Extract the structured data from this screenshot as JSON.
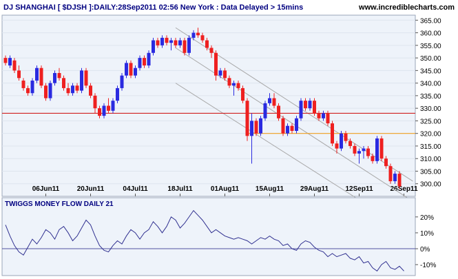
{
  "header": {
    "title": "DJ SHANGHAI [ $DJSH ]:DAILY:28Sep2011 02:56 New York  : Data Delayed > 15mins",
    "watermark": "www.incrediblecharts.com"
  },
  "colors": {
    "up": "#2a2ae0",
    "down": "#ee2020",
    "support_line": "#d02020",
    "resistance_line": "#f0a020",
    "channel": "#a8a8a8",
    "zero_line": "#5050a0",
    "indicator_line": "#303090",
    "panel_bg": "#eef3fa"
  },
  "chart_data": [
    {
      "type": "candlestick",
      "title": "DJ SHANGHAI [ $DJSH ]:DAILY:28Sep2011 02:56 New York  : Data Delayed > 15mins",
      "x_tick_labels": [
        "06Jun11",
        "20Jun11",
        "04Jul11",
        "18Jul11",
        "01Aug11",
        "15Aug11",
        "29Aug11",
        "12Sep11",
        "26Sep11"
      ],
      "y_tick_labels": [
        "300.00",
        "305.00",
        "310.00",
        "315.00",
        "320.00",
        "325.00",
        "330.00",
        "335.00",
        "340.00",
        "345.00",
        "350.00",
        "355.00",
        "360.00",
        "365.00"
      ],
      "ylim": [
        295,
        367
      ],
      "horizontal_lines": [
        {
          "value": 328,
          "color": "#d02020"
        },
        {
          "value": 320,
          "color": "#f0a020",
          "from_x": 54
        }
      ],
      "trend_channel": [
        {
          "x": [
            38,
            91
          ],
          "y": [
            362,
            301
          ]
        },
        {
          "x": [
            38,
            91
          ],
          "y": [
            354,
            293
          ]
        },
        {
          "x": [
            38,
            91
          ],
          "y": [
            340,
            280
          ]
        }
      ],
      "ohlc": [
        {
          "x": 0,
          "open": 350,
          "high": 351,
          "low": 347,
          "close": 348
        },
        {
          "x": 1,
          "open": 347,
          "high": 351,
          "low": 346,
          "close": 350
        },
        {
          "x": 2,
          "open": 349,
          "high": 350,
          "low": 344,
          "close": 345
        },
        {
          "x": 3,
          "open": 345,
          "high": 347,
          "low": 341,
          "close": 342
        },
        {
          "x": 4,
          "open": 341,
          "high": 342,
          "low": 337,
          "close": 338
        },
        {
          "x": 5,
          "open": 338,
          "high": 339,
          "low": 335,
          "close": 336
        },
        {
          "x": 6,
          "open": 336,
          "high": 342,
          "low": 335,
          "close": 341
        },
        {
          "x": 7,
          "open": 341,
          "high": 347,
          "low": 340,
          "close": 346
        },
        {
          "x": 8,
          "open": 346,
          "high": 347,
          "low": 338,
          "close": 339
        },
        {
          "x": 9,
          "open": 339,
          "high": 340,
          "low": 333,
          "close": 334
        },
        {
          "x": 10,
          "open": 334,
          "high": 341,
          "low": 333,
          "close": 340
        },
        {
          "x": 11,
          "open": 340,
          "high": 345,
          "low": 339,
          "close": 344
        },
        {
          "x": 12,
          "open": 344,
          "high": 346,
          "low": 341,
          "close": 342
        },
        {
          "x": 13,
          "open": 342,
          "high": 343,
          "low": 337,
          "close": 338
        },
        {
          "x": 14,
          "open": 338,
          "high": 340,
          "low": 335,
          "close": 336
        },
        {
          "x": 15,
          "open": 336,
          "high": 340,
          "low": 335,
          "close": 339
        },
        {
          "x": 16,
          "open": 339,
          "high": 340,
          "low": 336,
          "close": 337
        },
        {
          "x": 17,
          "open": 337,
          "high": 346,
          "low": 336,
          "close": 345
        },
        {
          "x": 18,
          "open": 345,
          "high": 346,
          "low": 338,
          "close": 339
        },
        {
          "x": 19,
          "open": 339,
          "high": 340,
          "low": 334,
          "close": 335
        },
        {
          "x": 20,
          "open": 335,
          "high": 336,
          "low": 328,
          "close": 330
        },
        {
          "x": 21,
          "open": 330,
          "high": 331,
          "low": 326,
          "close": 327
        },
        {
          "x": 22,
          "open": 327,
          "high": 332,
          "low": 326,
          "close": 331
        },
        {
          "x": 23,
          "open": 331,
          "high": 334,
          "low": 328,
          "close": 329
        },
        {
          "x": 24,
          "open": 329,
          "high": 334,
          "low": 328,
          "close": 333
        },
        {
          "x": 25,
          "open": 333,
          "high": 339,
          "low": 332,
          "close": 338
        },
        {
          "x": 26,
          "open": 338,
          "high": 344,
          "low": 337,
          "close": 343
        },
        {
          "x": 27,
          "open": 343,
          "high": 349,
          "low": 342,
          "close": 348
        },
        {
          "x": 28,
          "open": 348,
          "high": 349,
          "low": 342,
          "close": 343
        },
        {
          "x": 29,
          "open": 343,
          "high": 347,
          "low": 342,
          "close": 346
        },
        {
          "x": 30,
          "open": 346,
          "high": 351,
          "low": 345,
          "close": 350
        },
        {
          "x": 31,
          "open": 350,
          "high": 351,
          "low": 346,
          "close": 347
        },
        {
          "x": 32,
          "open": 347,
          "high": 353,
          "low": 346,
          "close": 352
        },
        {
          "x": 33,
          "open": 352,
          "high": 358,
          "low": 351,
          "close": 357
        },
        {
          "x": 34,
          "open": 357,
          "high": 358,
          "low": 354,
          "close": 355
        },
        {
          "x": 35,
          "open": 355,
          "high": 359,
          "low": 354,
          "close": 358
        },
        {
          "x": 36,
          "open": 358,
          "high": 359,
          "low": 355,
          "close": 356
        },
        {
          "x": 37,
          "open": 356,
          "high": 358,
          "low": 353,
          "close": 357
        },
        {
          "x": 38,
          "open": 357,
          "high": 358,
          "low": 354,
          "close": 355
        },
        {
          "x": 39,
          "open": 355,
          "high": 358,
          "low": 354,
          "close": 357
        },
        {
          "x": 40,
          "open": 357,
          "high": 358,
          "low": 351,
          "close": 352
        },
        {
          "x": 41,
          "open": 352,
          "high": 359,
          "low": 351,
          "close": 358
        },
        {
          "x": 42,
          "open": 358,
          "high": 361,
          "low": 357,
          "close": 360
        },
        {
          "x": 43,
          "open": 360,
          "high": 362,
          "low": 358,
          "close": 359
        },
        {
          "x": 44,
          "open": 359,
          "high": 360,
          "low": 356,
          "close": 357
        },
        {
          "x": 45,
          "open": 357,
          "high": 358,
          "low": 353,
          "close": 354
        },
        {
          "x": 46,
          "open": 354,
          "high": 355,
          "low": 350,
          "close": 352
        },
        {
          "x": 47,
          "open": 352,
          "high": 353,
          "low": 341,
          "close": 343
        },
        {
          "x": 48,
          "open": 343,
          "high": 346,
          "low": 342,
          "close": 345
        },
        {
          "x": 49,
          "open": 345,
          "high": 346,
          "low": 341,
          "close": 342
        },
        {
          "x": 50,
          "open": 342,
          "high": 343,
          "low": 338,
          "close": 339
        },
        {
          "x": 51,
          "open": 339,
          "high": 341,
          "low": 335,
          "close": 340
        },
        {
          "x": 52,
          "open": 340,
          "high": 341,
          "low": 337,
          "close": 338
        },
        {
          "x": 53,
          "open": 338,
          "high": 339,
          "low": 332,
          "close": 333
        },
        {
          "x": 54,
          "open": 333,
          "high": 334,
          "low": 317,
          "close": 319
        },
        {
          "x": 55,
          "open": 319,
          "high": 328,
          "low": 308,
          "close": 325
        },
        {
          "x": 56,
          "open": 325,
          "high": 326,
          "low": 319,
          "close": 320
        },
        {
          "x": 57,
          "open": 320,
          "high": 327,
          "low": 319,
          "close": 326
        },
        {
          "x": 58,
          "open": 326,
          "high": 333,
          "low": 325,
          "close": 332
        },
        {
          "x": 59,
          "open": 332,
          "high": 336,
          "low": 331,
          "close": 334
        },
        {
          "x": 60,
          "open": 334,
          "high": 336,
          "low": 330,
          "close": 331
        },
        {
          "x": 61,
          "open": 331,
          "high": 332,
          "low": 325,
          "close": 326
        },
        {
          "x": 62,
          "open": 326,
          "high": 327,
          "low": 319,
          "close": 320
        },
        {
          "x": 63,
          "open": 320,
          "high": 324,
          "low": 319,
          "close": 323
        },
        {
          "x": 64,
          "open": 323,
          "high": 324,
          "low": 320,
          "close": 321
        },
        {
          "x": 65,
          "open": 321,
          "high": 327,
          "low": 320,
          "close": 326
        },
        {
          "x": 66,
          "open": 326,
          "high": 334,
          "low": 325,
          "close": 333
        },
        {
          "x": 67,
          "open": 333,
          "high": 334,
          "low": 329,
          "close": 330
        },
        {
          "x": 68,
          "open": 330,
          "high": 334,
          "low": 329,
          "close": 333
        },
        {
          "x": 69,
          "open": 333,
          "high": 334,
          "low": 327,
          "close": 328
        },
        {
          "x": 70,
          "open": 328,
          "high": 329,
          "low": 325,
          "close": 326
        },
        {
          "x": 71,
          "open": 326,
          "high": 329,
          "low": 325,
          "close": 328
        },
        {
          "x": 72,
          "open": 328,
          "high": 329,
          "low": 323,
          "close": 324
        },
        {
          "x": 73,
          "open": 324,
          "high": 325,
          "low": 315,
          "close": 316
        },
        {
          "x": 74,
          "open": 316,
          "high": 317,
          "low": 312,
          "close": 314
        },
        {
          "x": 75,
          "open": 314,
          "high": 321,
          "low": 313,
          "close": 320
        },
        {
          "x": 76,
          "open": 320,
          "high": 321,
          "low": 316,
          "close": 317
        },
        {
          "x": 77,
          "open": 317,
          "high": 318,
          "low": 314,
          "close": 315
        },
        {
          "x": 78,
          "open": 315,
          "high": 316,
          "low": 311,
          "close": 312
        },
        {
          "x": 79,
          "open": 312,
          "high": 314,
          "low": 308,
          "close": 313
        },
        {
          "x": 80,
          "open": 313,
          "high": 315,
          "low": 310,
          "close": 314
        },
        {
          "x": 81,
          "open": 314,
          "high": 315,
          "low": 310,
          "close": 311
        },
        {
          "x": 82,
          "open": 311,
          "high": 312,
          "low": 308,
          "close": 309
        },
        {
          "x": 83,
          "open": 309,
          "high": 319,
          "low": 308,
          "close": 318
        },
        {
          "x": 84,
          "open": 318,
          "high": 319,
          "low": 309,
          "close": 310
        },
        {
          "x": 85,
          "open": 310,
          "high": 311,
          "low": 306,
          "close": 307
        },
        {
          "x": 86,
          "open": 307,
          "high": 308,
          "low": 300,
          "close": 301
        },
        {
          "x": 87,
          "open": 301,
          "high": 305,
          "low": 300,
          "close": 304
        },
        {
          "x": 88,
          "open": 304,
          "high": 305,
          "low": 298,
          "close": 299
        }
      ]
    },
    {
      "type": "line",
      "title": "TWIGGS MONEY FLOW DAILY 21",
      "y_tick_labels": [
        "20%",
        "10%",
        "0%",
        "-10%"
      ],
      "ylim": [
        -16,
        26
      ],
      "series": [
        {
          "values": [
            15,
            8,
            2,
            -2,
            -4,
            1,
            6,
            3,
            7,
            12,
            10,
            6,
            12,
            14,
            10,
            5,
            8,
            13,
            18,
            15,
            8,
            2,
            -1,
            -2,
            2,
            5,
            3,
            8,
            12,
            10,
            6,
            10,
            12,
            17,
            14,
            10,
            14,
            20,
            18,
            13,
            16,
            20,
            24,
            21,
            18,
            14,
            10,
            12,
            10,
            8,
            7,
            6,
            7,
            6,
            5,
            3,
            5,
            7,
            6,
            8,
            6,
            5,
            2,
            3,
            0,
            -1,
            3,
            5,
            4,
            1,
            -1,
            -2,
            -5,
            -3,
            -5,
            -4,
            -3,
            -6,
            -7,
            -5,
            -9,
            -8,
            -12,
            -14,
            -10,
            -8,
            -12,
            -13,
            -11,
            -14
          ]
        }
      ]
    }
  ]
}
